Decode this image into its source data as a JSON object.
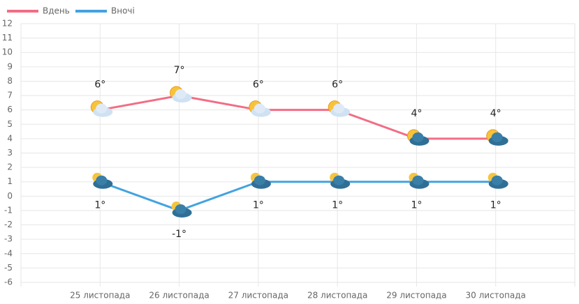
{
  "chart_data": {
    "type": "line",
    "categories": [
      "25 листопада",
      "26 листопада",
      "27 листопада",
      "28 листопада",
      "29 листопада",
      "30 листопада"
    ],
    "series": [
      {
        "name": "Вдень",
        "color": "#f26d85",
        "values": [
          6,
          7,
          6,
          6,
          4,
          4
        ],
        "value_labels": [
          "6°",
          "7°",
          "6°",
          "6°",
          "4°",
          "4°"
        ]
      },
      {
        "name": "Вночі",
        "color": "#42a3e0",
        "values": [
          1,
          -1,
          1,
          1,
          1,
          1
        ],
        "value_labels": [
          "1°",
          "-1°",
          "1°",
          "1°",
          "1°",
          "1°"
        ]
      }
    ],
    "ylim": [
      -6,
      12
    ],
    "yticks": [
      -6,
      -5,
      -4,
      -3,
      -2,
      -1,
      0,
      1,
      2,
      3,
      4,
      5,
      6,
      7,
      8,
      9,
      10,
      11,
      12
    ],
    "grid": true,
    "legend": "top-left"
  }
}
